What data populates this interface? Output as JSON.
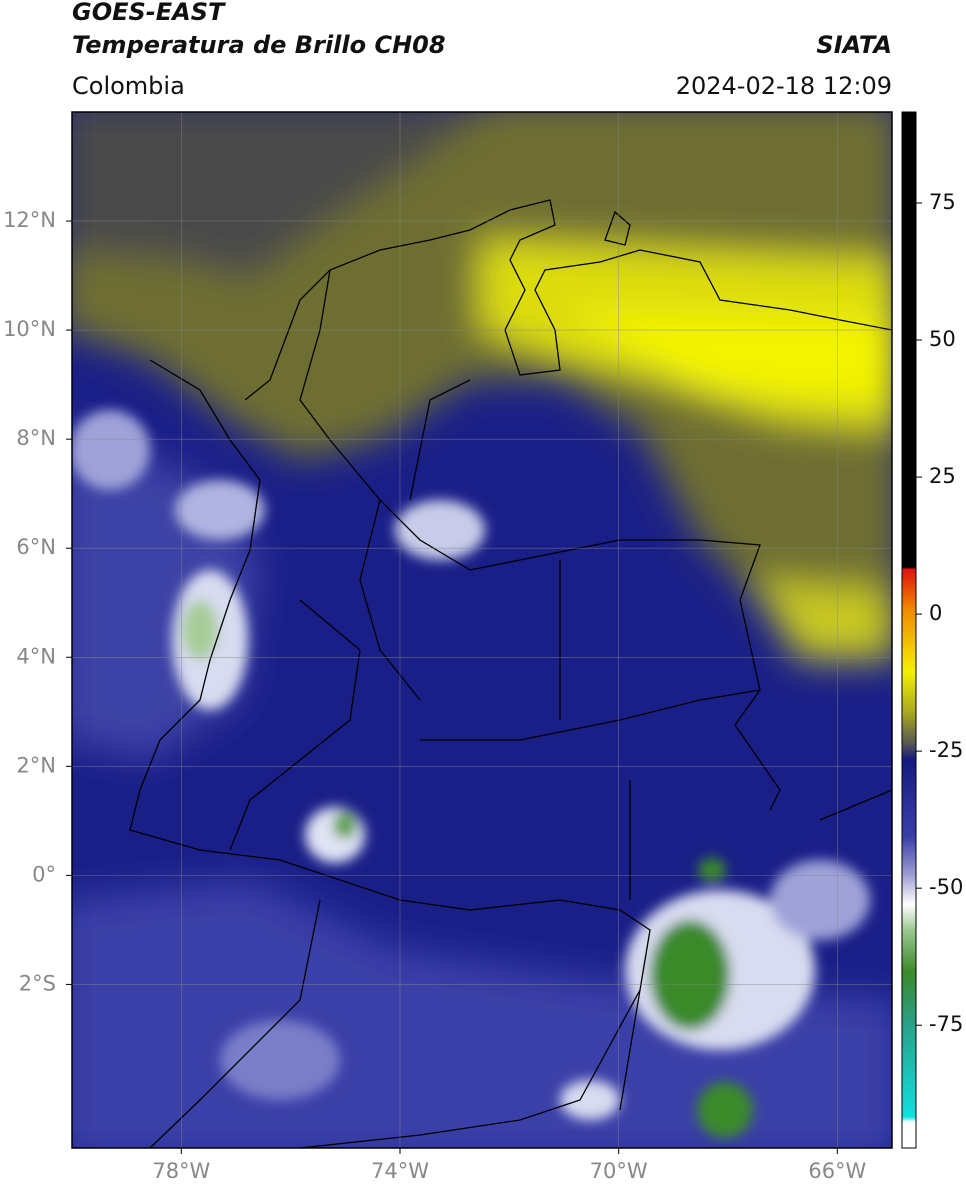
{
  "header": {
    "title": "GOES-EAST",
    "subtitle": "Temperatura de Brillo CH08",
    "region": "Colombia",
    "source": "SIATA",
    "datetime": "2024-02-18 12:09"
  },
  "map": {
    "lonlim": [
      -80,
      -65
    ],
    "latlim": [
      -5,
      14
    ],
    "lonticks": [
      {
        "value": -78,
        "label": "78°W"
      },
      {
        "value": -74,
        "label": "74°W"
      },
      {
        "value": -70,
        "label": "70°W"
      },
      {
        "value": -66,
        "label": "66°W"
      }
    ],
    "latticks": [
      {
        "value": 12,
        "label": "12°N"
      },
      {
        "value": 10,
        "label": "10°N"
      },
      {
        "value": 8,
        "label": "8°N"
      },
      {
        "value": 6,
        "label": "6°N"
      },
      {
        "value": 4,
        "label": "4°N"
      },
      {
        "value": 2,
        "label": "2°N"
      },
      {
        "value": 0,
        "label": "0°"
      },
      {
        "value": -2,
        "label": "2°S"
      }
    ],
    "grid": true
  },
  "colorbar": {
    "lim": [
      -97.4,
      91.6
    ],
    "ticks": [
      75,
      50,
      25,
      0,
      -25,
      -50,
      -75
    ]
  }
}
